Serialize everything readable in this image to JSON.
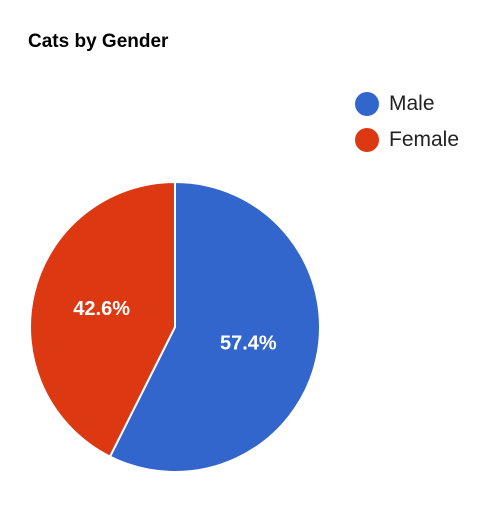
{
  "chart_data": {
    "type": "pie",
    "title": "Cats by Gender",
    "legend_position": "top-right",
    "slices": [
      {
        "name": "Male",
        "value": 57.4,
        "label": "57.4%",
        "color": "#3366cc"
      },
      {
        "name": "Female",
        "value": 42.6,
        "label": "42.6%",
        "color": "#dc3912"
      }
    ]
  }
}
